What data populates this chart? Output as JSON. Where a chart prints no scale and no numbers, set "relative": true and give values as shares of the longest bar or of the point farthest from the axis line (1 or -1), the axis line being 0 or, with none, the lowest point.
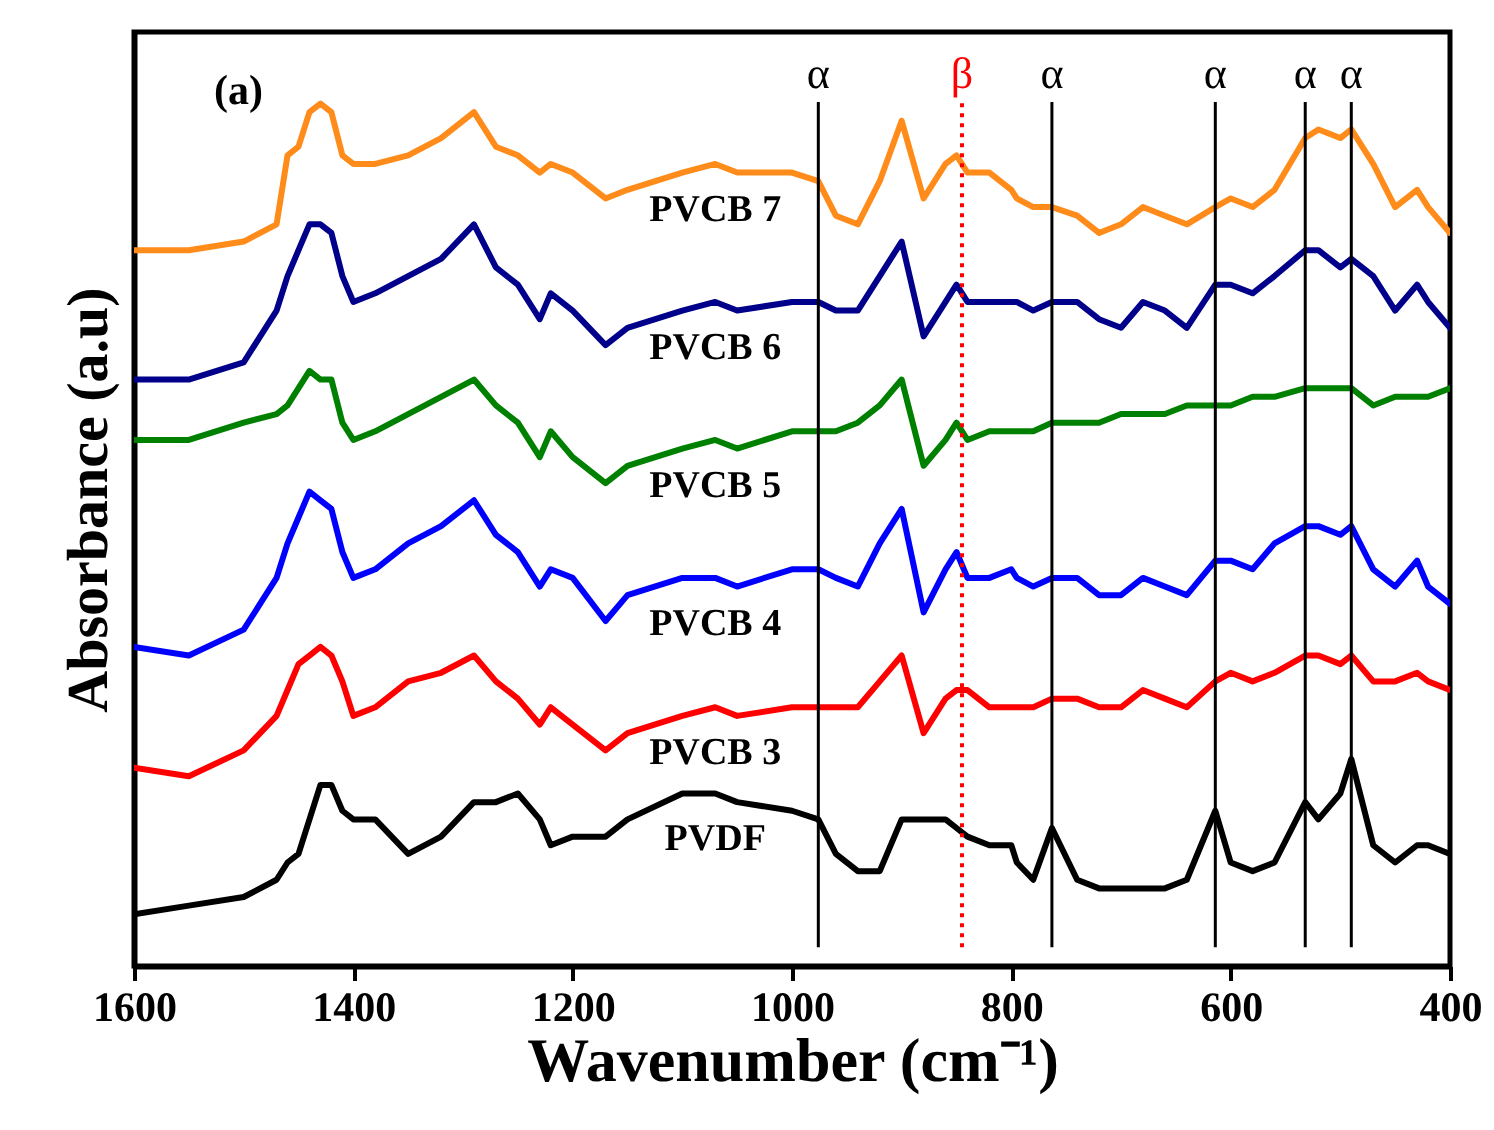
{
  "chart_data": {
    "type": "line",
    "relative": true,
    "xlabel": "Wavenumber (cm⁻¹)",
    "ylabel": "Absorbance (a.u)",
    "annotations": [
      "(a)"
    ],
    "xlim": [
      1600,
      400
    ],
    "xticks": [
      1600,
      1400,
      1200,
      1000,
      800,
      600,
      400
    ],
    "x": [
      1600,
      1550,
      1500,
      1470,
      1460,
      1450,
      1440,
      1430,
      1420,
      1410,
      1400,
      1380,
      1350,
      1320,
      1290,
      1270,
      1250,
      1230,
      1220,
      1200,
      1170,
      1150,
      1100,
      1070,
      1050,
      1000,
      976,
      960,
      940,
      920,
      900,
      880,
      860,
      850,
      840,
      820,
      800,
      795,
      780,
      763,
      740,
      720,
      700,
      680,
      660,
      640,
      614,
      600,
      580,
      560,
      532,
      520,
      500,
      490,
      470,
      450,
      430,
      420,
      400
    ],
    "series": [
      {
        "name": "PVCB 7",
        "color": "#ff8c1a",
        "values": [
          0.83,
          0.83,
          0.84,
          0.86,
          0.94,
          0.95,
          0.99,
          1.0,
          0.99,
          0.94,
          0.93,
          0.93,
          0.94,
          0.96,
          0.99,
          0.95,
          0.94,
          0.92,
          0.93,
          0.92,
          0.89,
          0.9,
          0.92,
          0.93,
          0.92,
          0.92,
          0.91,
          0.87,
          0.86,
          0.91,
          0.98,
          0.89,
          0.93,
          0.94,
          0.92,
          0.92,
          0.9,
          0.89,
          0.88,
          0.88,
          0.87,
          0.85,
          0.86,
          0.88,
          0.87,
          0.86,
          0.88,
          0.89,
          0.88,
          0.9,
          0.96,
          0.97,
          0.96,
          0.97,
          0.93,
          0.88,
          0.9,
          0.88,
          0.85
        ]
      },
      {
        "name": "PVCB 6",
        "color": "#00008b",
        "values": [
          0.68,
          0.68,
          0.7,
          0.76,
          0.8,
          0.83,
          0.86,
          0.86,
          0.85,
          0.8,
          0.77,
          0.78,
          0.8,
          0.82,
          0.86,
          0.81,
          0.79,
          0.75,
          0.78,
          0.76,
          0.72,
          0.74,
          0.76,
          0.77,
          0.76,
          0.77,
          0.77,
          0.76,
          0.76,
          0.8,
          0.84,
          0.73,
          0.77,
          0.79,
          0.77,
          0.77,
          0.77,
          0.77,
          0.76,
          0.77,
          0.77,
          0.75,
          0.74,
          0.77,
          0.76,
          0.74,
          0.79,
          0.79,
          0.78,
          0.8,
          0.83,
          0.83,
          0.81,
          0.82,
          0.8,
          0.76,
          0.79,
          0.77,
          0.74
        ]
      },
      {
        "name": "PVCB 5",
        "color": "#008000",
        "values": [
          0.61,
          0.61,
          0.63,
          0.64,
          0.65,
          0.67,
          0.69,
          0.68,
          0.68,
          0.63,
          0.61,
          0.62,
          0.64,
          0.66,
          0.68,
          0.65,
          0.63,
          0.59,
          0.62,
          0.59,
          0.56,
          0.58,
          0.6,
          0.61,
          0.6,
          0.62,
          0.62,
          0.62,
          0.63,
          0.65,
          0.68,
          0.58,
          0.61,
          0.63,
          0.61,
          0.62,
          0.62,
          0.62,
          0.62,
          0.63,
          0.63,
          0.63,
          0.64,
          0.64,
          0.64,
          0.65,
          0.65,
          0.65,
          0.66,
          0.66,
          0.67,
          0.67,
          0.67,
          0.67,
          0.65,
          0.66,
          0.66,
          0.66,
          0.67
        ]
      },
      {
        "name": "PVCB 4",
        "color": "#0000ff",
        "values": [
          0.37,
          0.36,
          0.39,
          0.45,
          0.49,
          0.52,
          0.55,
          0.54,
          0.53,
          0.48,
          0.45,
          0.46,
          0.49,
          0.51,
          0.54,
          0.5,
          0.48,
          0.44,
          0.46,
          0.45,
          0.4,
          0.43,
          0.45,
          0.45,
          0.44,
          0.46,
          0.46,
          0.45,
          0.44,
          0.49,
          0.53,
          0.41,
          0.46,
          0.48,
          0.45,
          0.45,
          0.46,
          0.45,
          0.44,
          0.45,
          0.45,
          0.43,
          0.43,
          0.45,
          0.44,
          0.43,
          0.47,
          0.47,
          0.46,
          0.49,
          0.51,
          0.51,
          0.5,
          0.51,
          0.46,
          0.44,
          0.47,
          0.44,
          0.42
        ]
      },
      {
        "name": "PVCB 3",
        "color": "#ff0000",
        "values": [
          0.23,
          0.22,
          0.25,
          0.29,
          0.32,
          0.35,
          0.36,
          0.37,
          0.36,
          0.33,
          0.29,
          0.3,
          0.33,
          0.34,
          0.36,
          0.33,
          0.31,
          0.28,
          0.3,
          0.28,
          0.25,
          0.27,
          0.29,
          0.3,
          0.29,
          0.3,
          0.3,
          0.3,
          0.3,
          0.33,
          0.36,
          0.27,
          0.31,
          0.32,
          0.32,
          0.3,
          0.3,
          0.3,
          0.3,
          0.31,
          0.31,
          0.3,
          0.3,
          0.32,
          0.31,
          0.3,
          0.33,
          0.34,
          0.33,
          0.34,
          0.36,
          0.36,
          0.35,
          0.36,
          0.33,
          0.33,
          0.34,
          0.33,
          0.32
        ]
      },
      {
        "name": "PVDF",
        "color": "#000000",
        "values": [
          0.06,
          0.07,
          0.08,
          0.1,
          0.12,
          0.13,
          0.17,
          0.21,
          0.21,
          0.18,
          0.17,
          0.17,
          0.13,
          0.15,
          0.19,
          0.19,
          0.2,
          0.17,
          0.14,
          0.15,
          0.15,
          0.17,
          0.2,
          0.2,
          0.19,
          0.18,
          0.17,
          0.13,
          0.11,
          0.11,
          0.17,
          0.17,
          0.17,
          0.16,
          0.15,
          0.14,
          0.14,
          0.12,
          0.1,
          0.16,
          0.1,
          0.09,
          0.09,
          0.09,
          0.09,
          0.1,
          0.18,
          0.12,
          0.11,
          0.12,
          0.19,
          0.17,
          0.2,
          0.24,
          0.14,
          0.12,
          0.14,
          0.14,
          0.13
        ]
      }
    ],
    "ref_lines": [
      {
        "axis": "x",
        "value": 976,
        "label": "α",
        "color": "#000000"
      },
      {
        "axis": "x",
        "value": 845,
        "label": "β",
        "color": "#ff0000",
        "line_style": "dotted"
      },
      {
        "axis": "x",
        "value": 763,
        "label": "α",
        "color": "#000000"
      },
      {
        "axis": "x",
        "value": 614,
        "label": "α",
        "color": "#000000"
      },
      {
        "axis": "x",
        "value": 532,
        "label": "α",
        "color": "#000000"
      },
      {
        "axis": "x",
        "value": 490,
        "label": "α",
        "color": "#000000"
      }
    ]
  }
}
